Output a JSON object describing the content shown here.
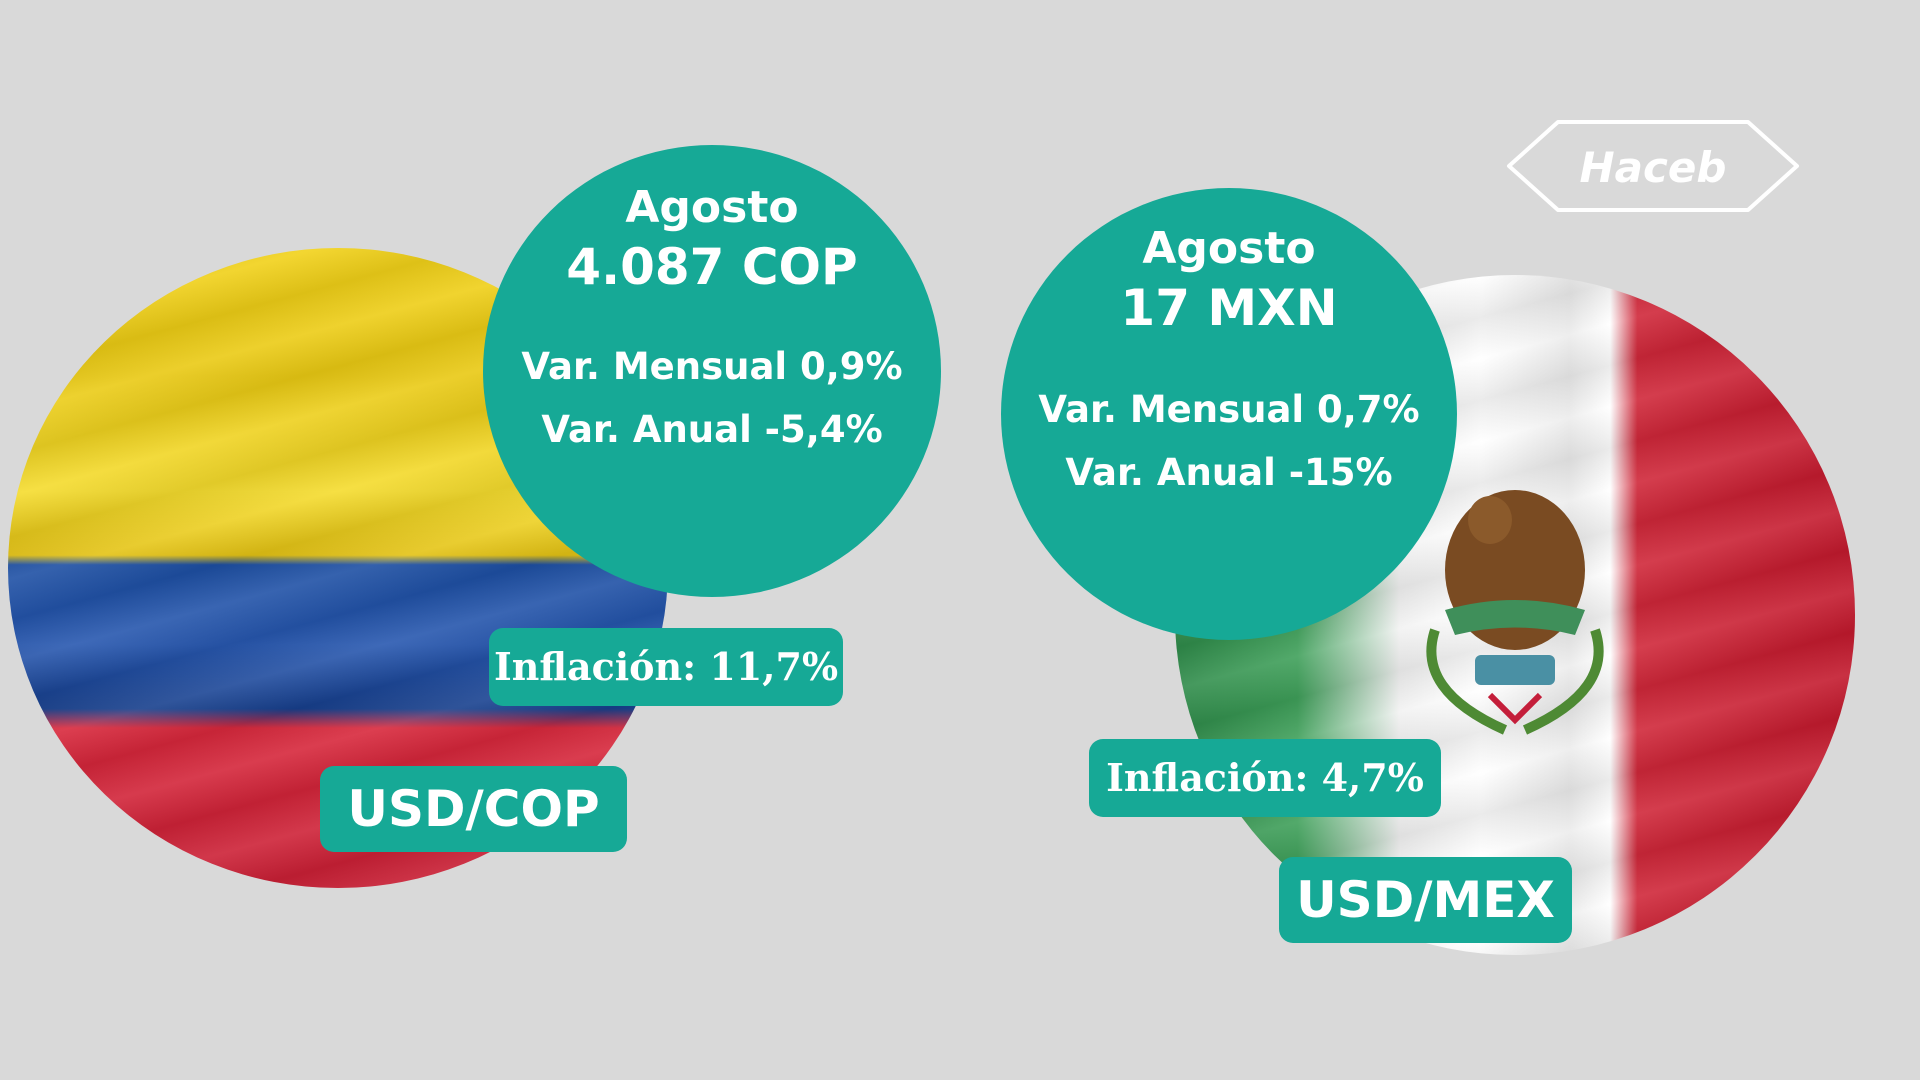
{
  "colombia": {
    "month": "Agosto",
    "rate": "4.087 COP",
    "monthly_variation": "Var. Mensual 0,9%",
    "annual_variation": "Var. Anual -5,4%",
    "inflation": "Inflación: 11,7%",
    "pair": "USD/COP",
    "flag_colors": [
      "#f2d21a",
      "#1d4fa3",
      "#d8283c"
    ]
  },
  "mexico": {
    "month": "Agosto",
    "rate": "17 MXN",
    "monthly_variation": "Var. Mensual 0,7%",
    "annual_variation": "Var. Anual -15%",
    "inflation": "Inflación: 4,7%",
    "pair": "USD/MEX",
    "flag_colors": [
      "#2f8b4a",
      "#ffffff",
      "#d0283a"
    ]
  },
  "brand": {
    "logo_text": "Haceb",
    "logo_icon": "haceb-logo"
  },
  "colors": {
    "background": "#d9d9d9",
    "accent": "#16a996",
    "text": "#ffffff"
  }
}
